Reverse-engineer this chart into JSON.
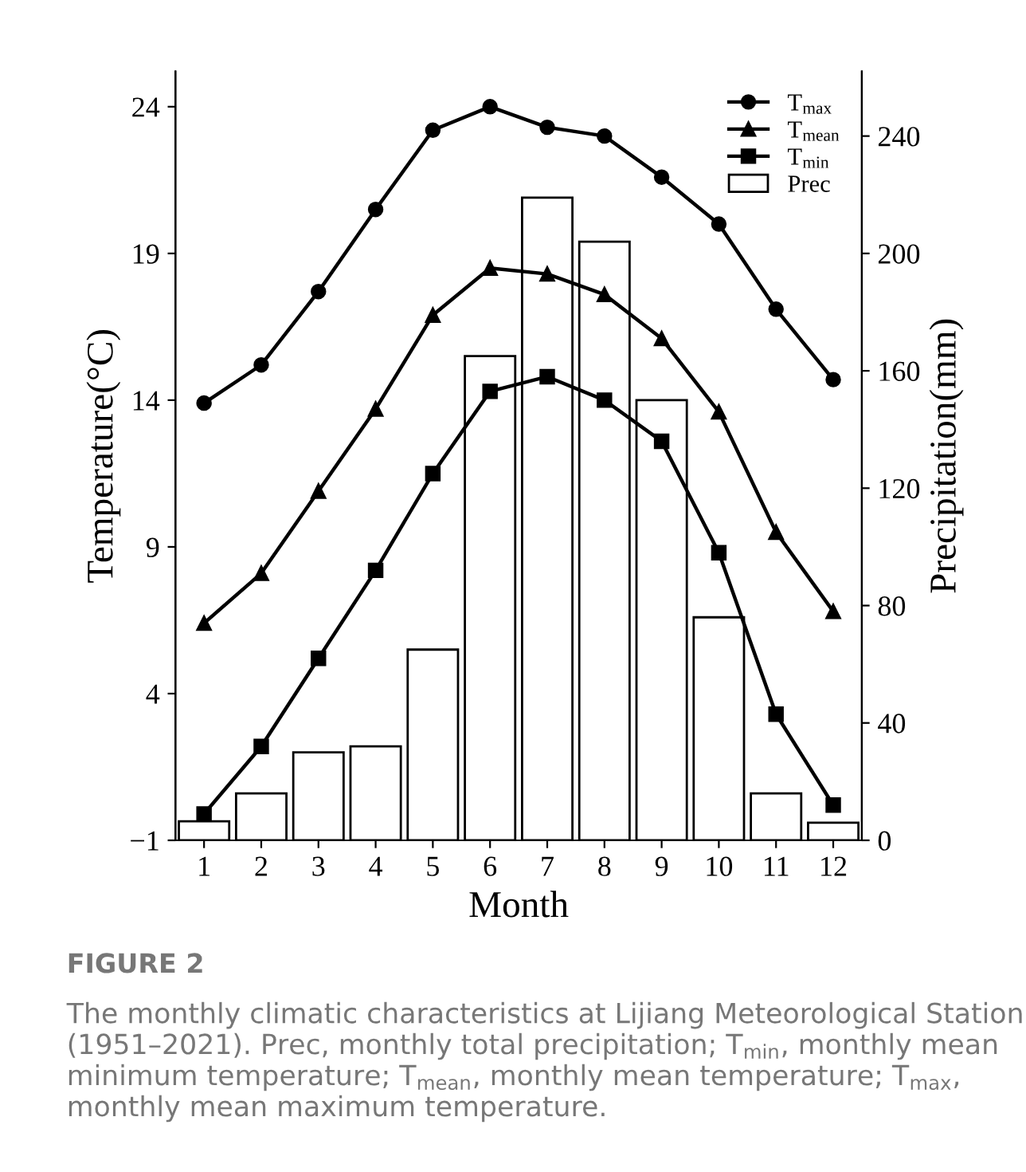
{
  "chart_data": {
    "type": "line",
    "xlabel": "Month",
    "ylabel": "Temperature(°C)",
    "y2label": "Precipitation(mm)",
    "categories": [
      "1",
      "2",
      "3",
      "4",
      "5",
      "6",
      "7",
      "8",
      "9",
      "10",
      "11",
      "12"
    ],
    "ylim": [
      -1,
      25.2
    ],
    "yticks": [
      -1,
      4,
      9,
      14,
      19,
      24
    ],
    "y2lim": [
      0,
      262
    ],
    "y2ticks": [
      0,
      40,
      80,
      120,
      160,
      200,
      240
    ],
    "grid": false,
    "legend": "top right",
    "series": [
      {
        "name": "T$_{max}$",
        "color": "#000000",
        "marker": "circle",
        "values": [
          13.9,
          15.2,
          17.7,
          20.5,
          23.2,
          24.0,
          23.3,
          23.0,
          21.6,
          20.0,
          17.1,
          14.7
        ]
      },
      {
        "name": "T$_{mean}$",
        "color": "#000000",
        "marker": "triangle",
        "values": [
          6.4,
          8.1,
          10.9,
          13.7,
          16.9,
          18.5,
          18.3,
          17.6,
          16.1,
          13.6,
          9.5,
          6.8
        ]
      },
      {
        "name": "T$_{min}$",
        "color": "#000000",
        "marker": "square",
        "values": [
          -0.1,
          2.2,
          5.2,
          8.2,
          11.5,
          14.3,
          14.8,
          14.0,
          12.6,
          8.8,
          3.3,
          0.2
        ]
      },
      {
        "name": "Prec",
        "type": "bar",
        "axis": "y2",
        "color": "#ffffff",
        "values": [
          6.5,
          16,
          30,
          32,
          65,
          165,
          219,
          204,
          150,
          76,
          16,
          6
        ]
      }
    ],
    "annotations": [
      "FIGURE 2",
      "The monthly climatic characteristics at Lijiang Meteorological Station (1951–2021). Prec, monthly total precipitation; T$_{min}$, monthly mean minimum temperature; T$_{mean}$, monthly mean temperature; T$_{max}$, monthly mean maximum temperature."
    ]
  }
}
